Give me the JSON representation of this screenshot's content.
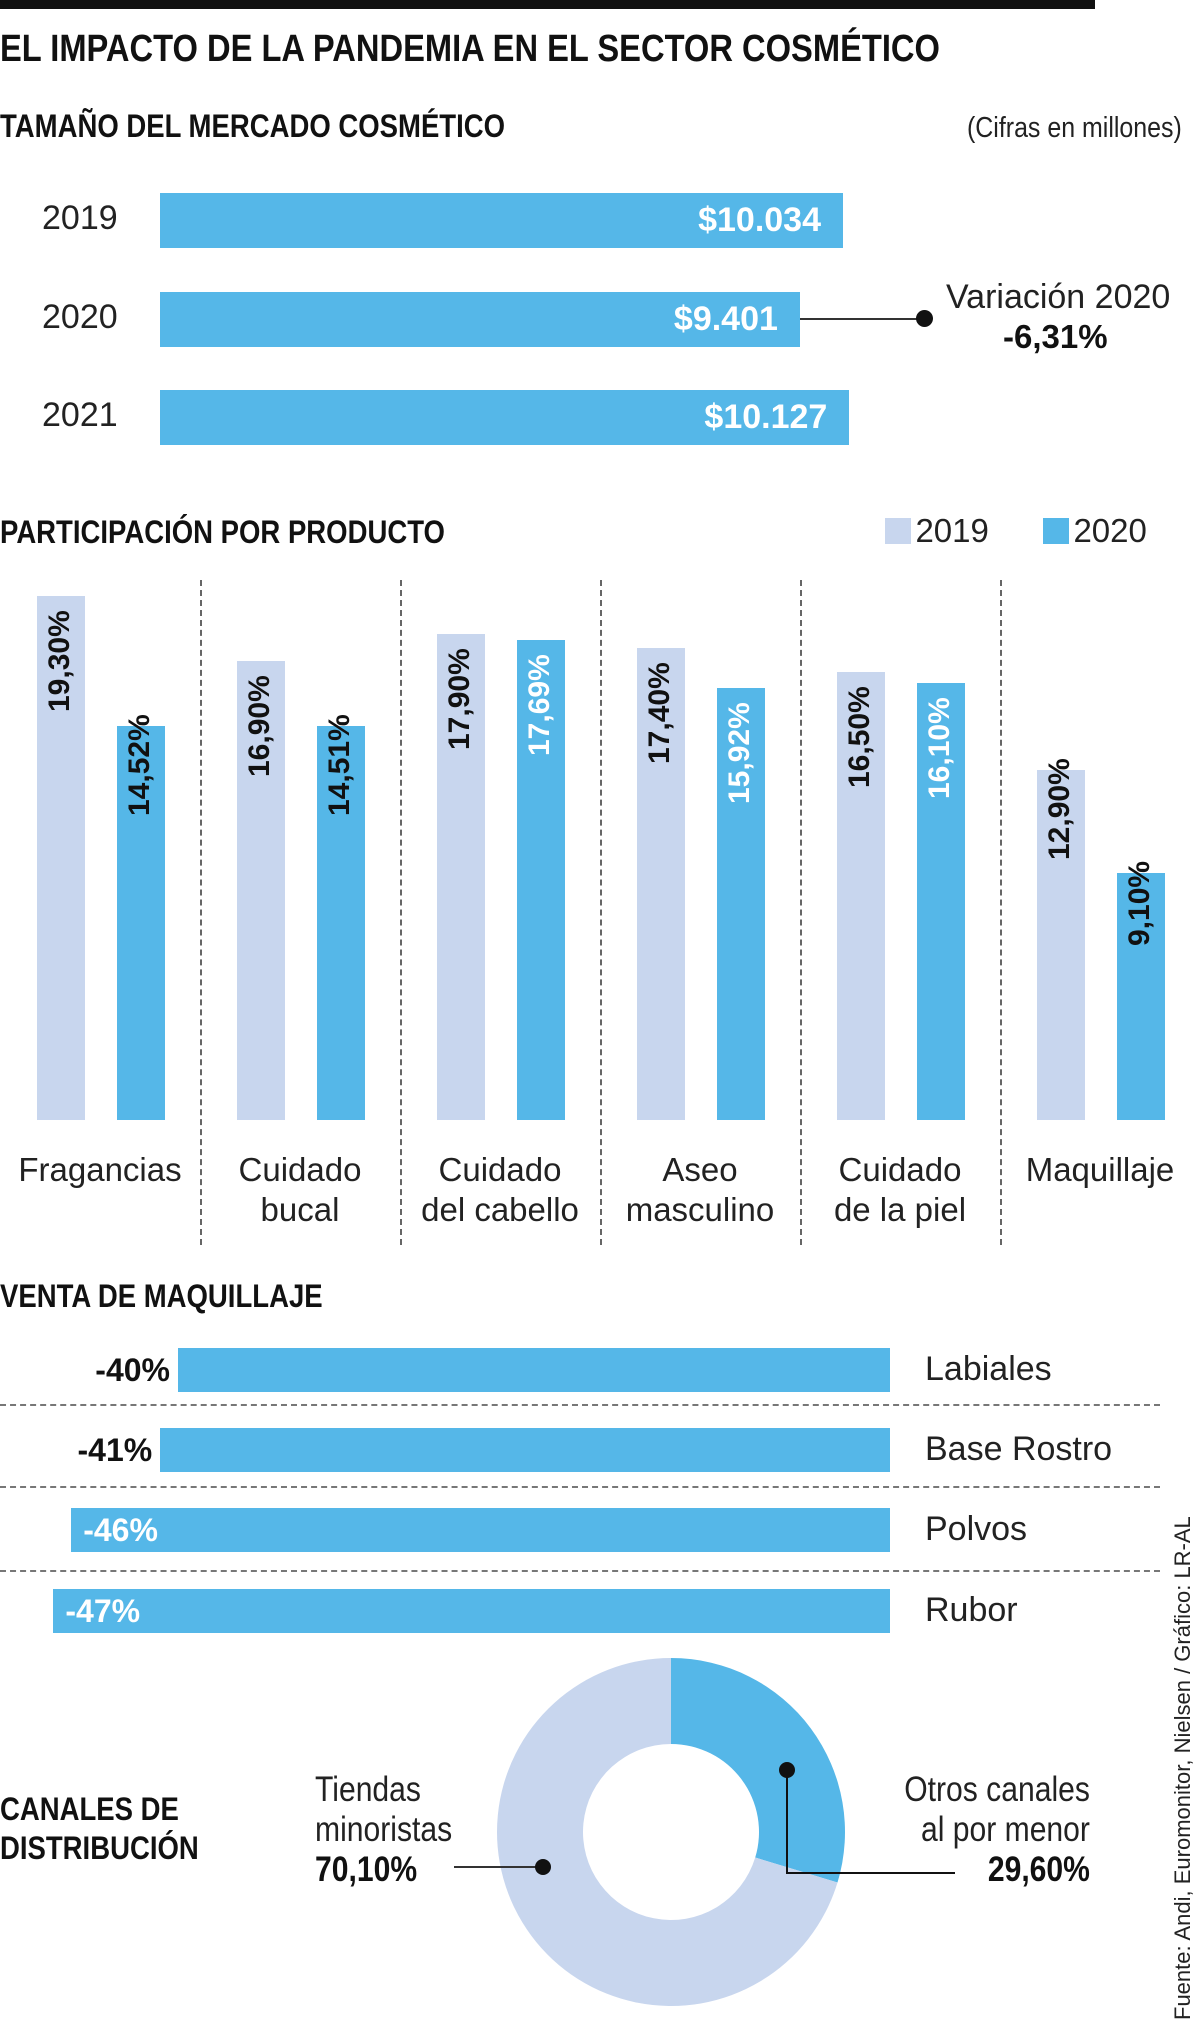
{
  "title": "EL IMPACTO DE LA PANDEMIA EN EL SECTOR COSMÉTICO",
  "colors": {
    "primary": "#55b7e8",
    "secondary": "#c8d6ee"
  },
  "chart_data": [
    {
      "type": "bar",
      "orientation": "horizontal",
      "title": "TAMAÑO DEL MERCADO COSMÉTICO",
      "note": "(Cifras en millones)",
      "categories": [
        "2019",
        "2020",
        "2021"
      ],
      "values": [
        10034,
        9401,
        10127
      ],
      "value_labels": [
        "$10.034",
        "$9.401",
        "$10.127"
      ],
      "annotation": {
        "label": "Variación 2020",
        "value": "-6,31%"
      }
    },
    {
      "type": "bar",
      "title": "PARTICIPACIÓN POR PRODUCTO",
      "categories": [
        [
          "Fragancias"
        ],
        [
          "Cuidado",
          "bucal"
        ],
        [
          "Cuidado",
          "del cabello"
        ],
        [
          "Aseo",
          "masculino"
        ],
        [
          "Cuidado",
          "de la piel"
        ],
        [
          "Maquillaje"
        ]
      ],
      "series": [
        {
          "name": "2019",
          "values": [
            19.3,
            16.9,
            17.9,
            17.4,
            16.5,
            12.9
          ],
          "labels": [
            "19,30%",
            "16,90%",
            "17,90%",
            "17,40%",
            "16,50%",
            "12,90%"
          ]
        },
        {
          "name": "2020",
          "values": [
            14.52,
            14.51,
            17.69,
            15.92,
            16.1,
            9.1
          ],
          "labels": [
            "14,52%",
            "14,51%",
            "17,69%",
            "15,92%",
            "16,10%",
            "9,10%"
          ]
        }
      ],
      "legend": "top-right",
      "unit": "%"
    },
    {
      "type": "bar",
      "orientation": "horizontal",
      "title": "VENTA DE MAQUILLAJE",
      "categories": [
        "Labiales",
        "Base Rostro",
        "Polvos",
        "Rubor"
      ],
      "values": [
        -40,
        -41,
        -46,
        -47
      ],
      "value_labels": [
        "-40%",
        "-41%",
        "-46%",
        "-47%"
      ]
    },
    {
      "type": "pie",
      "title_lines": [
        "CANALES DE",
        "DISTRIBUCIÓN"
      ],
      "slices": [
        {
          "label_lines": [
            "Otros canales",
            "al por menor"
          ],
          "value": 29.6,
          "value_label": "29,60%"
        },
        {
          "label_lines": [
            "Tiendas",
            "minoristas"
          ],
          "value": 70.1,
          "value_label": "70,10%"
        }
      ]
    }
  ],
  "source": "Fuente: Andi, Euromonitor, Nielsen / Gráfico: LR-AL"
}
